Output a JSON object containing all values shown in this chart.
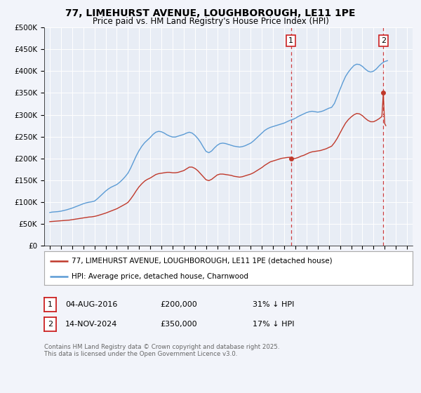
{
  "title": "77, LIMEHURST AVENUE, LOUGHBOROUGH, LE11 1PE",
  "subtitle": "Price paid vs. HM Land Registry's House Price Index (HPI)",
  "background_color": "#f2f4fa",
  "plot_bg_color": "#e8edf5",
  "ylim": [
    0,
    500000
  ],
  "yticks": [
    0,
    50000,
    100000,
    150000,
    200000,
    250000,
    300000,
    350000,
    400000,
    450000,
    500000
  ],
  "ytick_labels": [
    "£0",
    "£50K",
    "£100K",
    "£150K",
    "£200K",
    "£250K",
    "£300K",
    "£350K",
    "£400K",
    "£450K",
    "£500K"
  ],
  "xlim_start": 1994.5,
  "xlim_end": 2027.5,
  "xticks": [
    1995,
    1996,
    1997,
    1998,
    1999,
    2000,
    2001,
    2002,
    2003,
    2004,
    2005,
    2006,
    2007,
    2008,
    2009,
    2010,
    2011,
    2012,
    2013,
    2014,
    2015,
    2016,
    2017,
    2018,
    2019,
    2020,
    2021,
    2022,
    2023,
    2024,
    2025,
    2026,
    2027
  ],
  "hpi_color": "#5b9bd5",
  "price_color": "#c0392b",
  "marker1_x": 2016.6,
  "marker1_y": 200000,
  "marker2_x": 2024.88,
  "marker2_y": 350000,
  "vline1_x": 2016.6,
  "vline2_x": 2024.88,
  "legend_line1": "77, LIMEHURST AVENUE, LOUGHBOROUGH, LE11 1PE (detached house)",
  "legend_line2": "HPI: Average price, detached house, Charnwood",
  "footer": "Contains HM Land Registry data © Crown copyright and database right 2025.\nThis data is licensed under the Open Government Licence v3.0.",
  "ann1_date": "04-AUG-2016",
  "ann1_price": "£200,000",
  "ann1_hpi": "31% ↓ HPI",
  "ann2_date": "14-NOV-2024",
  "ann2_price": "£350,000",
  "ann2_hpi": "17% ↓ HPI",
  "hpi_data": [
    [
      1995.0,
      76000
    ],
    [
      1995.25,
      77000
    ],
    [
      1995.5,
      77500
    ],
    [
      1995.75,
      78000
    ],
    [
      1996.0,
      79000
    ],
    [
      1996.25,
      80500
    ],
    [
      1996.5,
      82000
    ],
    [
      1996.75,
      84000
    ],
    [
      1997.0,
      86000
    ],
    [
      1997.25,
      88500
    ],
    [
      1997.5,
      91000
    ],
    [
      1997.75,
      93500
    ],
    [
      1998.0,
      96000
    ],
    [
      1998.25,
      98000
    ],
    [
      1998.5,
      99500
    ],
    [
      1998.75,
      100500
    ],
    [
      1999.0,
      102000
    ],
    [
      1999.25,
      107000
    ],
    [
      1999.5,
      113000
    ],
    [
      1999.75,
      119000
    ],
    [
      2000.0,
      125000
    ],
    [
      2000.25,
      130000
    ],
    [
      2000.5,
      134000
    ],
    [
      2000.75,
      137000
    ],
    [
      2001.0,
      140000
    ],
    [
      2001.25,
      145000
    ],
    [
      2001.5,
      151000
    ],
    [
      2001.75,
      158000
    ],
    [
      2002.0,
      166000
    ],
    [
      2002.25,
      178000
    ],
    [
      2002.5,
      192000
    ],
    [
      2002.75,
      206000
    ],
    [
      2003.0,
      218000
    ],
    [
      2003.25,
      228000
    ],
    [
      2003.5,
      236000
    ],
    [
      2003.75,
      242000
    ],
    [
      2004.0,
      248000
    ],
    [
      2004.25,
      255000
    ],
    [
      2004.5,
      260000
    ],
    [
      2004.75,
      262000
    ],
    [
      2005.0,
      261000
    ],
    [
      2005.25,
      258000
    ],
    [
      2005.5,
      254000
    ],
    [
      2005.75,
      251000
    ],
    [
      2006.0,
      249000
    ],
    [
      2006.25,
      249000
    ],
    [
      2006.5,
      251000
    ],
    [
      2006.75,
      253000
    ],
    [
      2007.0,
      255000
    ],
    [
      2007.25,
      258000
    ],
    [
      2007.5,
      260000
    ],
    [
      2007.75,
      258000
    ],
    [
      2008.0,
      253000
    ],
    [
      2008.25,
      246000
    ],
    [
      2008.5,
      237000
    ],
    [
      2008.75,
      226000
    ],
    [
      2009.0,
      216000
    ],
    [
      2009.25,
      213000
    ],
    [
      2009.5,
      217000
    ],
    [
      2009.75,
      224000
    ],
    [
      2010.0,
      230000
    ],
    [
      2010.25,
      234000
    ],
    [
      2010.5,
      235000
    ],
    [
      2010.75,
      234000
    ],
    [
      2011.0,
      232000
    ],
    [
      2011.25,
      230000
    ],
    [
      2011.5,
      228000
    ],
    [
      2011.75,
      227000
    ],
    [
      2012.0,
      226000
    ],
    [
      2012.25,
      227000
    ],
    [
      2012.5,
      229000
    ],
    [
      2012.75,
      232000
    ],
    [
      2013.0,
      235000
    ],
    [
      2013.25,
      240000
    ],
    [
      2013.5,
      246000
    ],
    [
      2013.75,
      252000
    ],
    [
      2014.0,
      258000
    ],
    [
      2014.25,
      264000
    ],
    [
      2014.5,
      268000
    ],
    [
      2014.75,
      271000
    ],
    [
      2015.0,
      273000
    ],
    [
      2015.25,
      275000
    ],
    [
      2015.5,
      277000
    ],
    [
      2015.75,
      279000
    ],
    [
      2016.0,
      281000
    ],
    [
      2016.25,
      284000
    ],
    [
      2016.5,
      287000
    ],
    [
      2016.75,
      289000
    ],
    [
      2017.0,
      292000
    ],
    [
      2017.25,
      296000
    ],
    [
      2017.5,
      299000
    ],
    [
      2017.75,
      302000
    ],
    [
      2018.0,
      305000
    ],
    [
      2018.25,
      307000
    ],
    [
      2018.5,
      308000
    ],
    [
      2018.75,
      307000
    ],
    [
      2019.0,
      306000
    ],
    [
      2019.25,
      307000
    ],
    [
      2019.5,
      309000
    ],
    [
      2019.75,
      312000
    ],
    [
      2020.0,
      315000
    ],
    [
      2020.25,
      317000
    ],
    [
      2020.5,
      326000
    ],
    [
      2020.75,
      342000
    ],
    [
      2021.0,
      358000
    ],
    [
      2021.25,
      374000
    ],
    [
      2021.5,
      388000
    ],
    [
      2021.75,
      398000
    ],
    [
      2022.0,
      406000
    ],
    [
      2022.25,
      413000
    ],
    [
      2022.5,
      416000
    ],
    [
      2022.75,
      415000
    ],
    [
      2023.0,
      411000
    ],
    [
      2023.25,
      405000
    ],
    [
      2023.5,
      400000
    ],
    [
      2023.75,
      398000
    ],
    [
      2024.0,
      400000
    ],
    [
      2024.25,
      405000
    ],
    [
      2024.5,
      412000
    ],
    [
      2024.75,
      418000
    ],
    [
      2025.0,
      422000
    ],
    [
      2025.25,
      424000
    ]
  ],
  "price_data": [
    [
      1995.0,
      55000
    ],
    [
      1995.25,
      55500
    ],
    [
      1995.5,
      56000
    ],
    [
      1995.75,
      56500
    ],
    [
      1996.0,
      57000
    ],
    [
      1996.25,
      57500
    ],
    [
      1996.5,
      58000
    ],
    [
      1996.75,
      58500
    ],
    [
      1997.0,
      59500
    ],
    [
      1997.25,
      60500
    ],
    [
      1997.5,
      61500
    ],
    [
      1997.75,
      62500
    ],
    [
      1998.0,
      63500
    ],
    [
      1998.25,
      64500
    ],
    [
      1998.5,
      65500
    ],
    [
      1998.75,
      66000
    ],
    [
      1999.0,
      67000
    ],
    [
      1999.25,
      68500
    ],
    [
      1999.5,
      70500
    ],
    [
      1999.75,
      72500
    ],
    [
      2000.0,
      74500
    ],
    [
      2000.25,
      77000
    ],
    [
      2000.5,
      79500
    ],
    [
      2000.75,
      82000
    ],
    [
      2001.0,
      84500
    ],
    [
      2001.25,
      88000
    ],
    [
      2001.5,
      91500
    ],
    [
      2001.75,
      95000
    ],
    [
      2002.0,
      99000
    ],
    [
      2002.25,
      107000
    ],
    [
      2002.5,
      116000
    ],
    [
      2002.75,
      126000
    ],
    [
      2003.0,
      135000
    ],
    [
      2003.25,
      142000
    ],
    [
      2003.5,
      148000
    ],
    [
      2003.75,
      152000
    ],
    [
      2004.0,
      155000
    ],
    [
      2004.25,
      159000
    ],
    [
      2004.5,
      163000
    ],
    [
      2004.75,
      165000
    ],
    [
      2005.0,
      166000
    ],
    [
      2005.25,
      167000
    ],
    [
      2005.5,
      168000
    ],
    [
      2005.75,
      168000
    ],
    [
      2006.0,
      167000
    ],
    [
      2006.25,
      167000
    ],
    [
      2006.5,
      168000
    ],
    [
      2006.75,
      170000
    ],
    [
      2007.0,
      172000
    ],
    [
      2007.25,
      176000
    ],
    [
      2007.5,
      180000
    ],
    [
      2007.75,
      180000
    ],
    [
      2008.0,
      177000
    ],
    [
      2008.25,
      172000
    ],
    [
      2008.5,
      165000
    ],
    [
      2008.75,
      158000
    ],
    [
      2009.0,
      151000
    ],
    [
      2009.25,
      149000
    ],
    [
      2009.5,
      152000
    ],
    [
      2009.75,
      157000
    ],
    [
      2010.0,
      162000
    ],
    [
      2010.25,
      164000
    ],
    [
      2010.5,
      164000
    ],
    [
      2010.75,
      163000
    ],
    [
      2011.0,
      162000
    ],
    [
      2011.25,
      161000
    ],
    [
      2011.5,
      159000
    ],
    [
      2011.75,
      158000
    ],
    [
      2012.0,
      157000
    ],
    [
      2012.25,
      158000
    ],
    [
      2012.5,
      160000
    ],
    [
      2012.75,
      162000
    ],
    [
      2013.0,
      164000
    ],
    [
      2013.25,
      167000
    ],
    [
      2013.5,
      171000
    ],
    [
      2013.75,
      175000
    ],
    [
      2014.0,
      179000
    ],
    [
      2014.25,
      184000
    ],
    [
      2014.5,
      188000
    ],
    [
      2014.75,
      192000
    ],
    [
      2015.0,
      194000
    ],
    [
      2015.25,
      196000
    ],
    [
      2015.5,
      198000
    ],
    [
      2015.75,
      200000
    ],
    [
      2016.0,
      201000
    ],
    [
      2016.25,
      202000
    ],
    [
      2016.5,
      202500
    ],
    [
      2016.6,
      200000
    ],
    [
      2016.75,
      199000
    ],
    [
      2017.0,
      200000
    ],
    [
      2017.25,
      202000
    ],
    [
      2017.5,
      205000
    ],
    [
      2017.75,
      207000
    ],
    [
      2018.0,
      210000
    ],
    [
      2018.25,
      213000
    ],
    [
      2018.5,
      215000
    ],
    [
      2018.75,
      216000
    ],
    [
      2019.0,
      217000
    ],
    [
      2019.25,
      218000
    ],
    [
      2019.5,
      220000
    ],
    [
      2019.75,
      222000
    ],
    [
      2020.0,
      225000
    ],
    [
      2020.25,
      228000
    ],
    [
      2020.5,
      236000
    ],
    [
      2020.75,
      246000
    ],
    [
      2021.0,
      258000
    ],
    [
      2021.25,
      270000
    ],
    [
      2021.5,
      281000
    ],
    [
      2021.75,
      289000
    ],
    [
      2022.0,
      295000
    ],
    [
      2022.25,
      300000
    ],
    [
      2022.5,
      303000
    ],
    [
      2022.75,
      302000
    ],
    [
      2023.0,
      298000
    ],
    [
      2023.25,
      292000
    ],
    [
      2023.5,
      287000
    ],
    [
      2023.75,
      284000
    ],
    [
      2024.0,
      284000
    ],
    [
      2024.25,
      287000
    ],
    [
      2024.5,
      291000
    ],
    [
      2024.75,
      296000
    ],
    [
      2024.88,
      350000
    ],
    [
      2025.0,
      280000
    ],
    [
      2025.1,
      275000
    ]
  ]
}
